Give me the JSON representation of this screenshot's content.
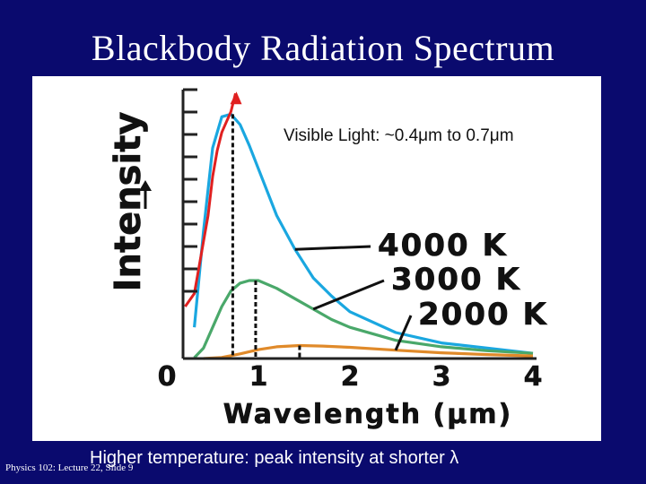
{
  "slide": {
    "title": "Blackbody Radiation Spectrum",
    "visible_note": "Visible Light: ~0.4μm to 0.7μm",
    "caption": "Higher temperature: peak intensity at shorter λ",
    "footer": "Physics 102: Lecture 22, Slide 9"
  },
  "colors": {
    "background": "#0a0a6e",
    "t4000": "#1aa7e0",
    "t3000": "#4aa86a",
    "t2000": "#e08a2a",
    "visible_edge": "#e02020"
  },
  "chart_data": {
    "type": "line",
    "xlabel": "Wavelength (μm)",
    "ylabel": "Intensity",
    "xlim": [
      0,
      4
    ],
    "ylim": [
      0,
      1
    ],
    "x_ticks": [
      "0",
      "1",
      "2",
      "3",
      "4"
    ],
    "series": [
      {
        "name": "4000 K",
        "temperature_K": 4000,
        "peak_x": 0.72,
        "peak_y": 0.94,
        "points": [
          [
            0.3,
            0.12
          ],
          [
            0.4,
            0.49
          ],
          [
            0.5,
            0.81
          ],
          [
            0.6,
            0.93
          ],
          [
            0.7,
            0.94
          ],
          [
            0.8,
            0.9
          ],
          [
            0.9,
            0.82
          ],
          [
            1.0,
            0.73
          ],
          [
            1.2,
            0.55
          ],
          [
            1.4,
            0.42
          ],
          [
            1.6,
            0.31
          ],
          [
            1.8,
            0.24
          ],
          [
            2.0,
            0.18
          ],
          [
            2.5,
            0.1
          ],
          [
            3.0,
            0.06
          ],
          [
            3.5,
            0.04
          ],
          [
            4.0,
            0.02
          ]
        ]
      },
      {
        "name": "3000 K",
        "temperature_K": 3000,
        "peak_x": 0.97,
        "peak_y": 0.3,
        "points": [
          [
            0.3,
            0.003
          ],
          [
            0.4,
            0.04
          ],
          [
            0.5,
            0.12
          ],
          [
            0.6,
            0.2
          ],
          [
            0.7,
            0.26
          ],
          [
            0.8,
            0.29
          ],
          [
            0.9,
            0.3
          ],
          [
            1.0,
            0.3
          ],
          [
            1.2,
            0.27
          ],
          [
            1.4,
            0.23
          ],
          [
            1.6,
            0.19
          ],
          [
            1.8,
            0.15
          ],
          [
            2.0,
            0.12
          ],
          [
            2.5,
            0.07
          ],
          [
            3.0,
            0.045
          ],
          [
            3.5,
            0.03
          ],
          [
            4.0,
            0.02
          ]
        ]
      },
      {
        "name": "2000 K",
        "temperature_K": 2000,
        "peak_x": 1.45,
        "peak_y": 0.05,
        "points": [
          [
            0.4,
            0.0
          ],
          [
            0.6,
            0.004
          ],
          [
            0.8,
            0.018
          ],
          [
            1.0,
            0.034
          ],
          [
            1.2,
            0.045
          ],
          [
            1.45,
            0.05
          ],
          [
            1.7,
            0.048
          ],
          [
            2.0,
            0.043
          ],
          [
            2.5,
            0.032
          ],
          [
            3.0,
            0.022
          ],
          [
            3.5,
            0.015
          ],
          [
            4.0,
            0.01
          ]
        ]
      }
    ],
    "visible_edge_curve": [
      [
        0.2,
        0.2
      ],
      [
        0.3,
        0.25
      ],
      [
        0.35,
        0.35
      ],
      [
        0.4,
        0.45
      ],
      [
        0.45,
        0.55
      ],
      [
        0.5,
        0.7
      ],
      [
        0.55,
        0.8
      ],
      [
        0.6,
        0.87
      ],
      [
        0.7,
        0.95
      ],
      [
        0.75,
        1.02
      ]
    ],
    "peak_markers": [
      0.72,
      0.97,
      1.45
    ],
    "legend": "right, labels with leader lines"
  }
}
